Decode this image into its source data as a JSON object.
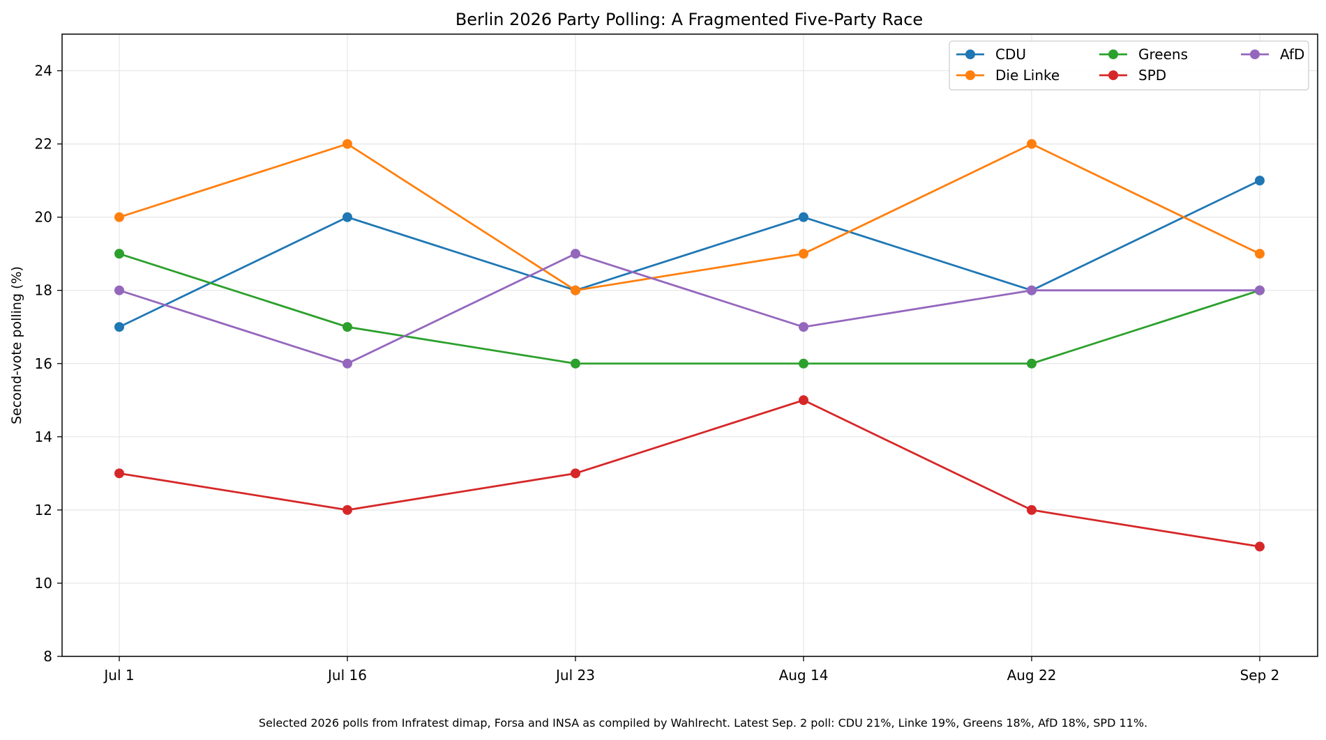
{
  "chart_data": {
    "type": "line",
    "title": "Berlin 2026 Party Polling: A Fragmented Five-Party Race",
    "xlabel": "",
    "ylabel": "Second-vote polling (%)",
    "categories": [
      "Jul 1",
      "Jul 16",
      "Jul 23",
      "Aug 14",
      "Aug 22",
      "Sep 2"
    ],
    "ylim": [
      8,
      25
    ],
    "yticks": [
      8,
      10,
      12,
      14,
      16,
      18,
      20,
      22,
      24
    ],
    "grid": true,
    "legend_placement": "top-right",
    "series": [
      {
        "name": "CDU",
        "color": "#1f77b4",
        "values": [
          17,
          20,
          18,
          20,
          18,
          21
        ]
      },
      {
        "name": "Die Linke",
        "color": "#ff7f0e",
        "values": [
          20,
          22,
          18,
          19,
          22,
          19
        ]
      },
      {
        "name": "Greens",
        "color": "#2ca02c",
        "values": [
          19,
          17,
          16,
          16,
          16,
          18
        ]
      },
      {
        "name": "SPD",
        "color": "#d62728",
        "values": [
          13,
          12,
          13,
          15,
          12,
          11
        ]
      },
      {
        "name": "AfD",
        "color": "#9467bd",
        "values": [
          18,
          16,
          19,
          17,
          18,
          18
        ]
      }
    ],
    "footnote": "Selected 2026 polls from Infratest dimap, Forsa and INSA as compiled by Wahlrecht. Latest Sep. 2 poll: CDU 21%, Linke 19%, Greens 18%, AfD 18%, SPD 11%."
  }
}
